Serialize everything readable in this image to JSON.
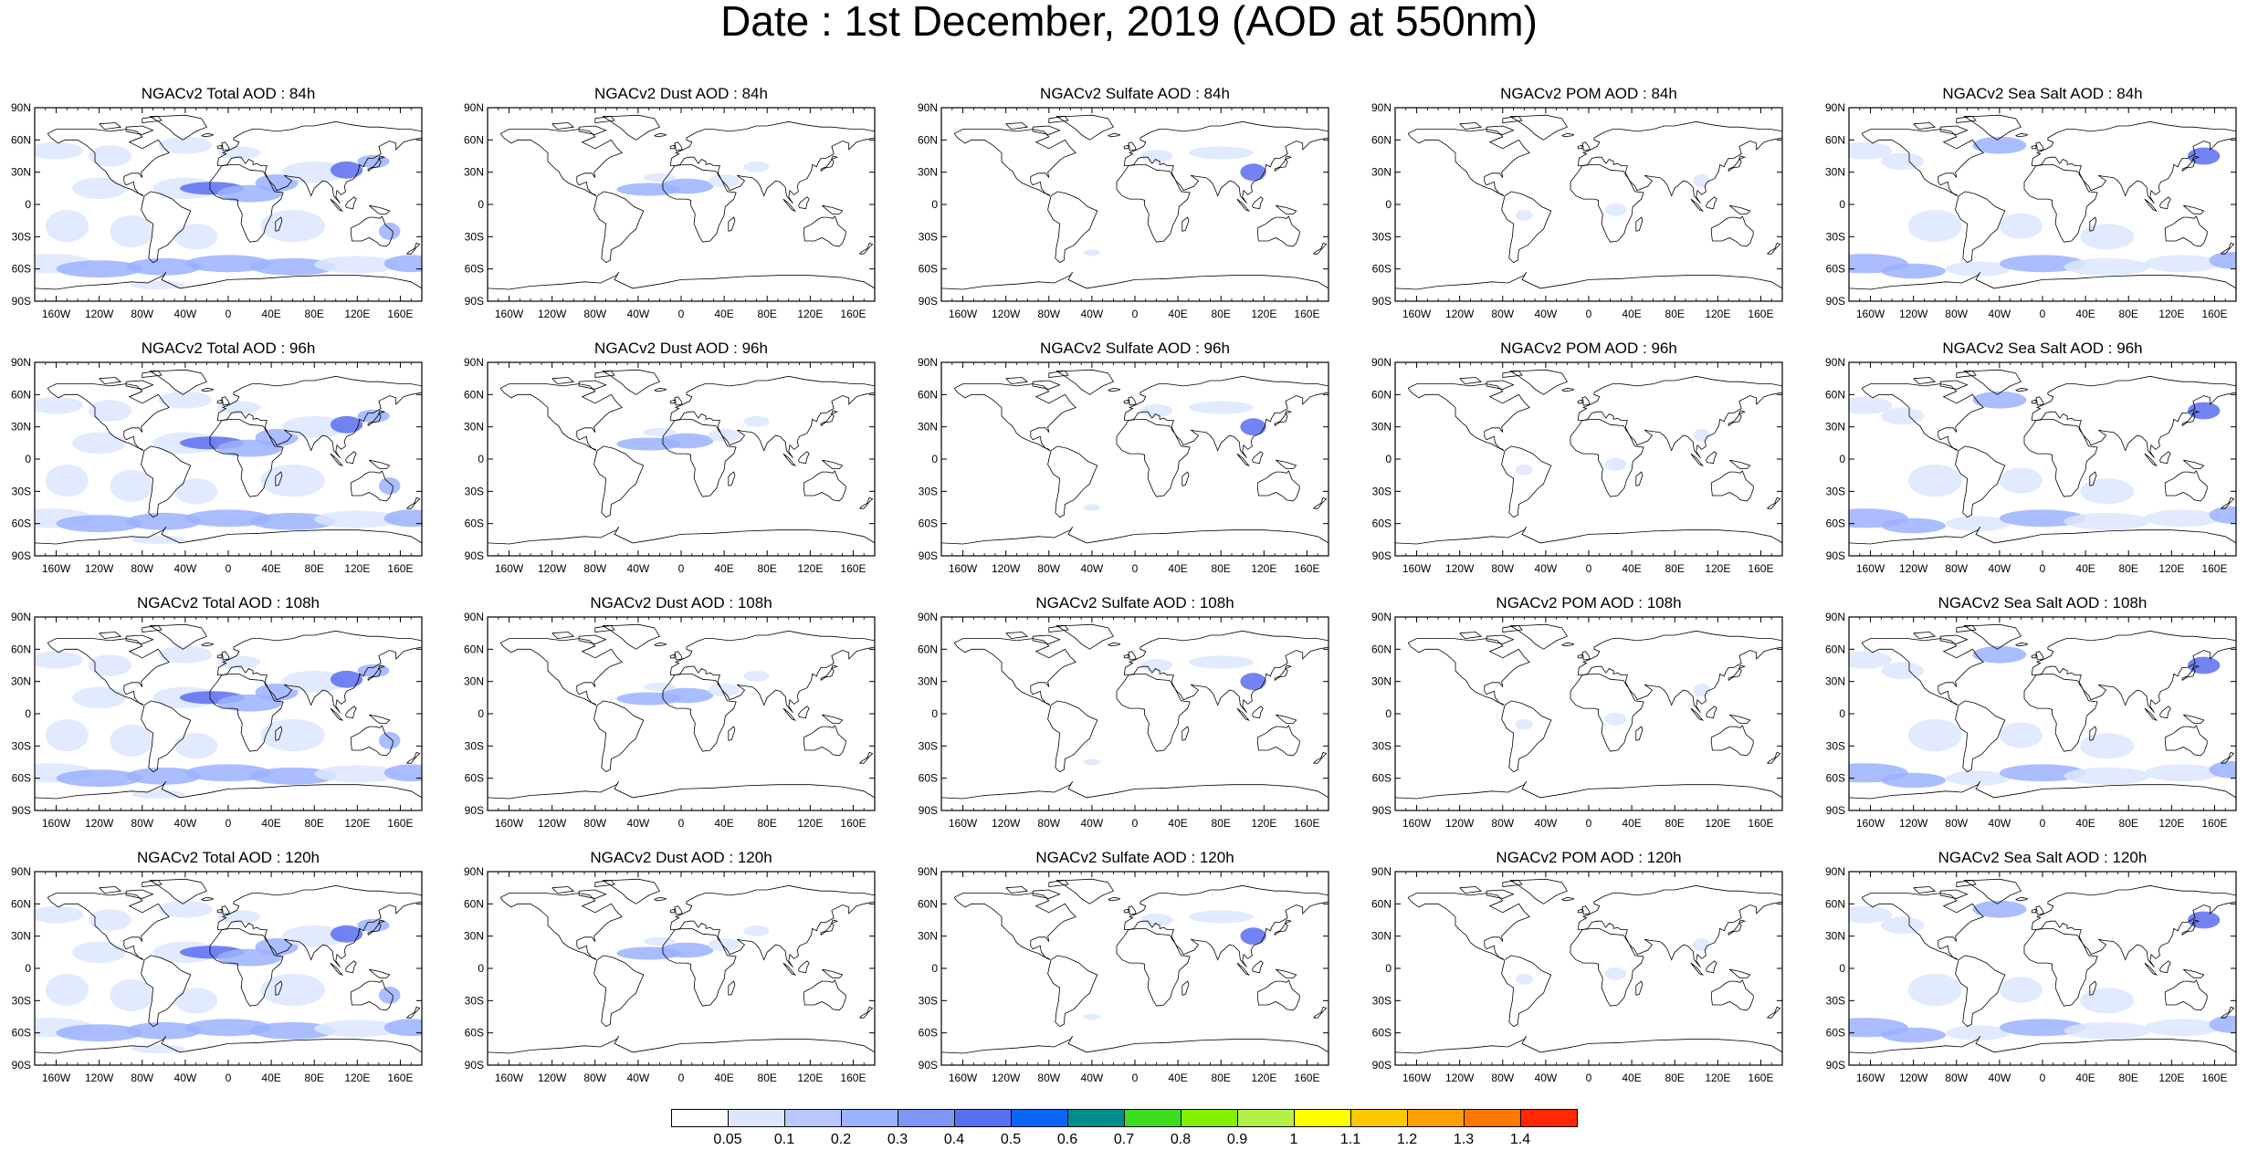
{
  "title": "Date : 1st December, 2019 (AOD at 550nm)",
  "x_ticks": [
    "160W",
    "120W",
    "80W",
    "40W",
    "0",
    "40E",
    "80E",
    "120E",
    "160E"
  ],
  "x_tick_lon": [
    -160,
    -120,
    -80,
    -40,
    0,
    40,
    80,
    120,
    160
  ],
  "y_ticks": [
    "90N",
    "60N",
    "30N",
    "0",
    "30S",
    "60S",
    "90S"
  ],
  "y_tick_lat": [
    90,
    60,
    30,
    0,
    -30,
    -60,
    -90
  ],
  "panels": [
    {
      "title": "NGACv2 Total AOD : 84h",
      "species": "total"
    },
    {
      "title": "NGACv2 Dust AOD : 84h",
      "species": "dust"
    },
    {
      "title": "NGACv2 Sulfate AOD : 84h",
      "species": "sulfate"
    },
    {
      "title": "NGACv2 POM AOD : 84h",
      "species": "pom"
    },
    {
      "title": "NGACv2 Sea Salt AOD : 84h",
      "species": "seasalt"
    },
    {
      "title": "NGACv2 Total AOD : 96h",
      "species": "total"
    },
    {
      "title": "NGACv2 Dust AOD : 96h",
      "species": "dust"
    },
    {
      "title": "NGACv2 Sulfate AOD : 96h",
      "species": "sulfate"
    },
    {
      "title": "NGACv2 POM AOD : 96h",
      "species": "pom"
    },
    {
      "title": "NGACv2 Sea Salt AOD : 96h",
      "species": "seasalt"
    },
    {
      "title": "NGACv2 Total AOD : 108h",
      "species": "total"
    },
    {
      "title": "NGACv2 Dust AOD : 108h",
      "species": "dust"
    },
    {
      "title": "NGACv2 Sulfate AOD : 108h",
      "species": "sulfate"
    },
    {
      "title": "NGACv2 POM AOD : 108h",
      "species": "pom"
    },
    {
      "title": "NGACv2 Sea Salt AOD : 108h",
      "species": "seasalt"
    },
    {
      "title": "NGACv2 Total AOD : 120h",
      "species": "total"
    },
    {
      "title": "NGACv2 Dust AOD : 120h",
      "species": "dust"
    },
    {
      "title": "NGACv2 Sulfate AOD : 120h",
      "species": "sulfate"
    },
    {
      "title": "NGACv2 POM AOD : 120h",
      "species": "pom"
    },
    {
      "title": "NGACv2 Sea Salt  AOD : 120h",
      "species": "seasalt"
    }
  ],
  "colorbar": {
    "labels": [
      "0.05",
      "0.1",
      "0.2",
      "0.3",
      "0.4",
      "0.5",
      "0.6",
      "0.7",
      "0.8",
      "0.9",
      "1",
      "1.1",
      "1.2",
      "1.3",
      "1.4"
    ],
    "colors": [
      "#ffffff",
      "#dce6ff",
      "#b9c9ff",
      "#9bb2ff",
      "#7f96f5",
      "#5a6ff0",
      "#0a64f5",
      "#008c8c",
      "#3cdc1e",
      "#82f000",
      "#b4f046",
      "#ffff00",
      "#ffc800",
      "#ffa000",
      "#ff7800",
      "#ff2800"
    ]
  },
  "colors": {
    "land_outline": "#000000",
    "aod_low": "#dce6ff",
    "aod_mid": "#9bb2ff",
    "aod_high": "#5a6ff0"
  }
}
